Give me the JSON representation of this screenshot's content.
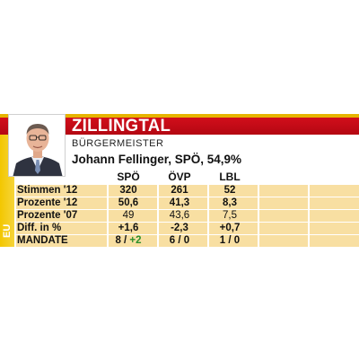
{
  "header": {
    "town": "ZILLINGTAL"
  },
  "side_label": "EU",
  "mayor": {
    "role": "BÜRGERMEISTER",
    "name": "Johann Fellinger, SPÖ, 54,9%"
  },
  "table": {
    "parties": [
      "SPÖ",
      "ÖVP",
      "LBL"
    ],
    "rows": [
      {
        "label": "Stimmen '12",
        "cells": [
          "320",
          "261",
          "52"
        ]
      },
      {
        "label": "Prozente '12",
        "cells": [
          "50,6",
          "41,3",
          "8,3"
        ]
      },
      {
        "label": "Prozente '07",
        "cells": [
          "49",
          "43,6",
          "7,5"
        ]
      },
      {
        "label": "Diff. in %",
        "cells": [
          "+1,6",
          "-2,3",
          "+0,7"
        ]
      },
      {
        "label": "MANDATE",
        "cells": [
          {
            "a": "8 / ",
            "b": "+2"
          },
          {
            "a": "6 / 0",
            "b": ""
          },
          {
            "a": "1 / 0",
            "b": ""
          }
        ]
      }
    ]
  },
  "colors": {
    "header_red": "#c70c18",
    "accent_gold": "#e6b400",
    "row_fill": "#f8dfa2",
    "positive": "#2c8f2c",
    "negative": "#d01020"
  }
}
